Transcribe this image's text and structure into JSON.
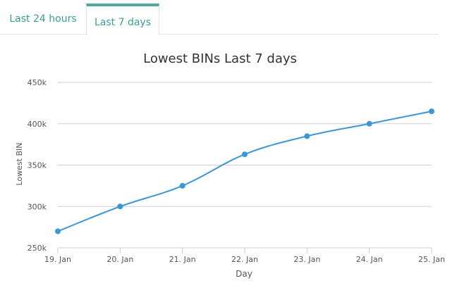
{
  "tabs": [
    {
      "label": "Last 24 hours",
      "active": false
    },
    {
      "label": "Last 7 days",
      "active": true
    }
  ],
  "colors": {
    "accent": "#4cab9a",
    "tab_text": "#3a9f93",
    "series": "#3b97d6",
    "grid": "#cfcfcf",
    "axis_text": "#555555",
    "title": "#333333"
  },
  "chart_data": {
    "type": "line",
    "title": "Lowest BINs Last 7 days",
    "xlabel": "Day",
    "ylabel": "Lowest BIN",
    "categories": [
      "19. Jan",
      "20. Jan",
      "21. Jan",
      "22. Jan",
      "23. Jan",
      "24. Jan",
      "25. Jan"
    ],
    "yticks": [
      "250k",
      "300k",
      "350k",
      "400k",
      "450k"
    ],
    "ylim": [
      250000,
      450000
    ],
    "grid": true,
    "legend": "none",
    "series": [
      {
        "values": [
          270000,
          300000,
          325000,
          363000,
          385000,
          400000,
          415000
        ]
      }
    ]
  }
}
